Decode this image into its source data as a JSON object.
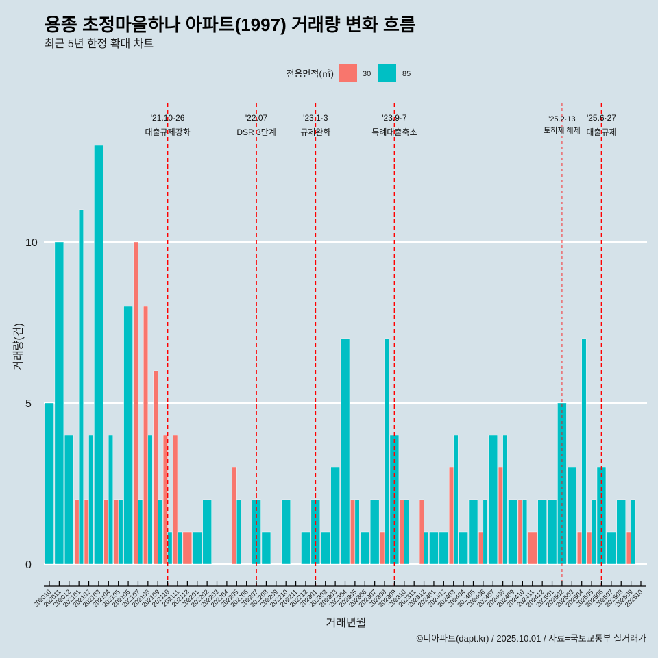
{
  "header": {
    "title": "용종 초정마을하나 아파트(1997) 거래량 변화 흐름",
    "subtitle": "최근 5년 한정 확대 차트"
  },
  "legend": {
    "title": "전용면적(㎡)",
    "items": [
      {
        "label": "30",
        "color": "#F8766D"
      },
      {
        "label": "85",
        "color": "#00BFC4"
      }
    ]
  },
  "caption": "©디아파트(dapt.kr) / 2025.10.01 / 자료=국토교통부 실거래가",
  "colors": {
    "background": "#d5e2e9",
    "gridline": "#ffffff",
    "event_line": "#ff0000",
    "axis": "#000000"
  },
  "chart_data": {
    "type": "bar",
    "title": "용종 초정마을하나 아파트(1997) 거래량 변화 흐름",
    "subtitle": "최근 5년 한정 확대 차트",
    "xlabel": "거래년월",
    "ylabel": "거래량(건)",
    "ylim": [
      -0.7,
      14.3
    ],
    "yticks": [
      0,
      5,
      10
    ],
    "grid": "horizontal-major",
    "legend_position": "top",
    "bar_mode": "dodge",
    "categories": [
      "202010",
      "202011",
      "202012",
      "202101",
      "202102",
      "202103",
      "202104",
      "202105",
      "202106",
      "202107",
      "202108",
      "202109",
      "202110",
      "202111",
      "202112",
      "202201",
      "202202",
      "202203",
      "202204",
      "202205",
      "202206",
      "202207",
      "202208",
      "202209",
      "202210",
      "202211",
      "202212",
      "202301",
      "202302",
      "202303",
      "202304",
      "202305",
      "202306",
      "202307",
      "202308",
      "202309",
      "202310",
      "202311",
      "202312",
      "202401",
      "202402",
      "202403",
      "202404",
      "202405",
      "202406",
      "202407",
      "202408",
      "202409",
      "202410",
      "202411",
      "202412",
      "202501",
      "202502",
      "202503",
      "202504",
      "202505",
      "202506",
      "202507",
      "202508",
      "202509",
      "202510"
    ],
    "series": [
      {
        "name": "30",
        "color": "#F8766D",
        "values": [
          null,
          null,
          null,
          2,
          2,
          null,
          2,
          2,
          null,
          10,
          8,
          6,
          4,
          4,
          1,
          null,
          null,
          null,
          null,
          3,
          null,
          null,
          null,
          null,
          null,
          null,
          null,
          null,
          null,
          null,
          null,
          2,
          null,
          null,
          1,
          null,
          2,
          null,
          2,
          null,
          null,
          3,
          null,
          null,
          1,
          null,
          3,
          null,
          2,
          1,
          null,
          null,
          null,
          null,
          1,
          1,
          null,
          null,
          null,
          1,
          null
        ]
      },
      {
        "name": "85",
        "color": "#00BFC4",
        "values": [
          5,
          10,
          4,
          11,
          4,
          13,
          4,
          2,
          8,
          2,
          4,
          2,
          1,
          1,
          null,
          1,
          2,
          null,
          null,
          2,
          null,
          2,
          1,
          null,
          2,
          null,
          1,
          2,
          1,
          3,
          7,
          2,
          1,
          2,
          7,
          4,
          2,
          null,
          1,
          1,
          1,
          4,
          1,
          2,
          2,
          4,
          4,
          2,
          2,
          null,
          2,
          2,
          5,
          3,
          7,
          2,
          3,
          1,
          2,
          2,
          null
        ]
      }
    ],
    "annotations": [
      {
        "x": "202110",
        "date": "'21.10·26",
        "label": "대출규제강화",
        "emphasis": "normal"
      },
      {
        "x": "202207",
        "date": "'22.07",
        "label": "DSR 3단계",
        "emphasis": "normal"
      },
      {
        "x": "202301",
        "date": "'23.1·3",
        "label": "규제완화",
        "emphasis": "normal"
      },
      {
        "x": "202309",
        "date": "'23.9·7",
        "label": "특례대출축소",
        "emphasis": "normal"
      },
      {
        "x": "202502",
        "date": "'25.2·13",
        "label": "토허제 해제",
        "emphasis": "low"
      },
      {
        "x": "202506",
        "date": "'25.6·27",
        "label": "대출규제",
        "emphasis": "normal"
      }
    ]
  }
}
